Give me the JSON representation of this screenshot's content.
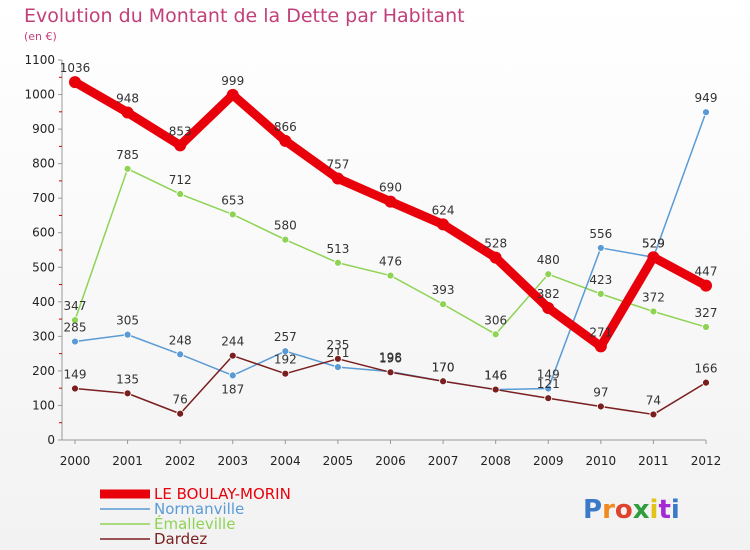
{
  "chart_data": {
    "type": "line",
    "title": "Evolution du Montant de la Dette par Habitant",
    "subtitle": "(en €)",
    "xlabel": "",
    "ylabel": "",
    "x": [
      "2000",
      "2001",
      "2002",
      "2003",
      "2004",
      "2005",
      "2006",
      "2007",
      "2008",
      "2009",
      "2010",
      "2011",
      "2012"
    ],
    "ylim": [
      0,
      1100
    ],
    "yticks": [
      0,
      100,
      200,
      300,
      400,
      500,
      600,
      700,
      800,
      900,
      1000,
      1100
    ],
    "grid": false,
    "legend_position": "bottom-left",
    "series": [
      {
        "name": "LE BOULAY-MORIN",
        "color": "#e8000b",
        "values": [
          1036,
          948,
          853,
          999,
          866,
          757,
          690,
          624,
          528,
          382,
          271,
          529,
          447
        ]
      },
      {
        "name": "Normanville",
        "color": "#5a9bd5",
        "values": [
          285,
          305,
          248,
          187,
          257,
          211,
          198,
          170,
          146,
          149,
          556,
          529,
          949
        ]
      },
      {
        "name": "Émalleville",
        "color": "#8ed354",
        "values": [
          347,
          785,
          712,
          653,
          580,
          513,
          476,
          393,
          306,
          480,
          423,
          372,
          327
        ]
      },
      {
        "name": "Dardez",
        "color": "#7a1f1f",
        "values": [
          149,
          135,
          76,
          244,
          192,
          235,
          196,
          170,
          146,
          121,
          97,
          74,
          166
        ]
      }
    ]
  },
  "logo": {
    "text": "Proxiti",
    "colors": [
      "#3b7ac8",
      "#f08a1d",
      "#e0422b",
      "#2e9e3e",
      "#e3c21a",
      "#a22bd6",
      "#3b7ac8"
    ]
  }
}
